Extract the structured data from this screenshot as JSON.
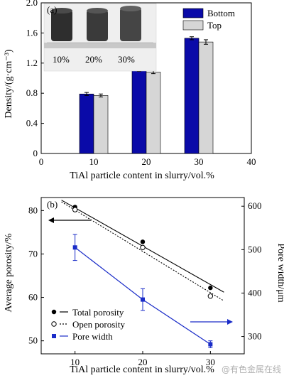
{
  "panel_a": {
    "label": "(a)",
    "photo_labels": [
      "10%",
      "20%",
      "30%"
    ]
  },
  "panel_b": {
    "label": "(b)"
  },
  "watermark": "@有色金属在线",
  "colors": {
    "bottom": "#0a0aa8",
    "top": "#d6d6d6",
    "pore": "#1a2cc8",
    "total": "#000000",
    "open": "#000000"
  },
  "chart_data": [
    {
      "type": "bar",
      "panel": "(a)",
      "title": "",
      "xlabel": "TiAl particle content in slurry/vol.%",
      "ylabel": "Density/(g·cm⁻³)",
      "xlim": [
        0,
        40
      ],
      "xticks": [
        "0",
        "10",
        "20",
        "30",
        "40"
      ],
      "ylim": [
        0,
        2.0
      ],
      "yticks": [
        "0",
        "0.4",
        "0.8",
        "1.2",
        "1.6",
        "2.0"
      ],
      "categories": [
        "10",
        "20",
        "30"
      ],
      "series": [
        {
          "name": "Bottom",
          "values": [
            0.79,
            1.1,
            1.53
          ],
          "errors": [
            0.02,
            0.01,
            0.02
          ]
        },
        {
          "name": "Top",
          "values": [
            0.77,
            1.08,
            1.48
          ],
          "errors": [
            0.02,
            0.02,
            0.03
          ]
        }
      ],
      "legend": "top-right"
    },
    {
      "type": "line",
      "panel": "(b)",
      "title": "",
      "xlabel": "TiAl particle content in slurry/vol.%",
      "ylabel": "Average porosity/%",
      "y2label": "Pore width/μm",
      "xlim": [
        5,
        35
      ],
      "xticks": [
        "10",
        "20",
        "30"
      ],
      "ylim": [
        47,
        83
      ],
      "yticks": [
        "50",
        "60",
        "70",
        "80"
      ],
      "y2lim": [
        260,
        620
      ],
      "y2ticks": [
        "300",
        "400",
        "500",
        "600"
      ],
      "series": [
        {
          "name": "Total porosity",
          "axis": "left",
          "x": [
            10,
            20,
            30
          ],
          "values": [
            80.8,
            72.8,
            62.2
          ]
        },
        {
          "name": "Open porosity",
          "axis": "left",
          "x": [
            10,
            20,
            30
          ],
          "values": [
            80.2,
            71.5,
            60.3
          ]
        },
        {
          "name": "Pore width",
          "axis": "right",
          "x": [
            10,
            20,
            30
          ],
          "values": [
            505,
            385,
            282
          ],
          "errors": [
            30,
            25,
            8
          ]
        }
      ],
      "fit_lines": [
        {
          "series": "Total porosity",
          "x": [
            8,
            32
          ],
          "values": [
            82.4,
            61.2
          ]
        },
        {
          "series": "Open porosity",
          "x": [
            8,
            32
          ],
          "values": [
            82.0,
            59.2
          ]
        }
      ],
      "legend": "bottom-left"
    }
  ]
}
